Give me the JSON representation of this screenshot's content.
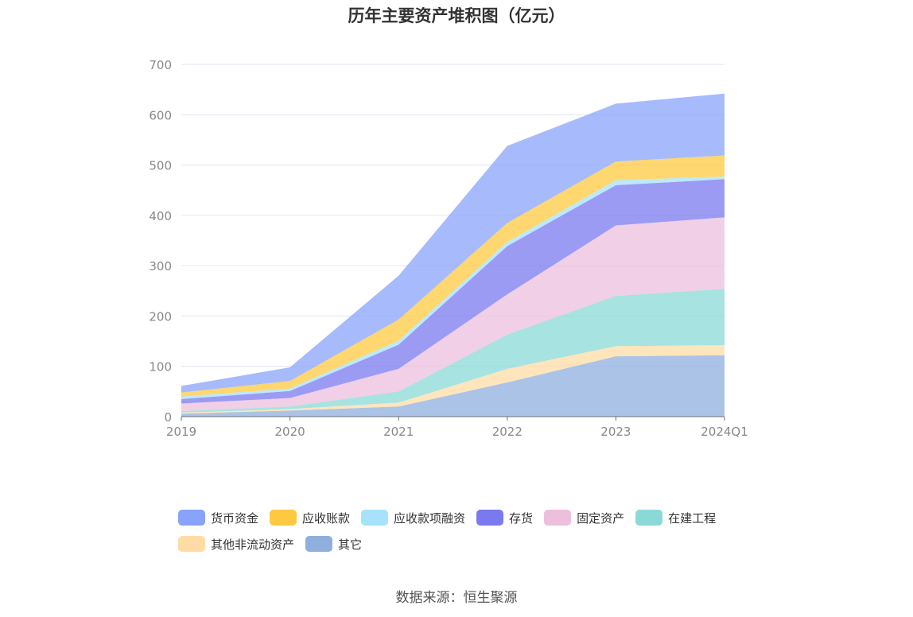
{
  "chart_data": {
    "type": "area",
    "stacked": true,
    "title": "历年主要资产堆积图（亿元）",
    "categories": [
      "2019",
      "2020",
      "2021",
      "2022",
      "2023",
      "2024Q1"
    ],
    "ylim": [
      0,
      700
    ],
    "yticks": [
      0,
      100,
      200,
      300,
      400,
      500,
      600,
      700
    ],
    "grid": true,
    "legend_position": "bottom",
    "series": [
      {
        "name": "其它",
        "color": "#8fafdd",
        "values": [
          6,
          12,
          20,
          68,
          120,
          122
        ]
      },
      {
        "name": "其他非流动资产",
        "color": "#ffdca5",
        "values": [
          2,
          3,
          8,
          27,
          20,
          20
        ]
      },
      {
        "name": "在建工程",
        "color": "#8ad9d6",
        "values": [
          3,
          5,
          22,
          68,
          100,
          112
        ]
      },
      {
        "name": "固定资产",
        "color": "#ecbfdd",
        "values": [
          15,
          17,
          45,
          80,
          140,
          142
        ]
      },
      {
        "name": "存货",
        "color": "#7a79ef",
        "values": [
          9,
          14,
          48,
          96,
          80,
          76
        ]
      },
      {
        "name": "应收款项融资",
        "color": "#a6e2fb",
        "values": [
          5,
          5,
          8,
          8,
          10,
          5
        ]
      },
      {
        "name": "应收账款",
        "color": "#fec940",
        "values": [
          8,
          15,
          42,
          38,
          37,
          42
        ]
      },
      {
        "name": "货币资金",
        "color": "#88a3fb",
        "values": [
          13,
          27,
          87,
          153,
          115,
          123
        ]
      }
    ],
    "legend_order": [
      "货币资金",
      "应收账款",
      "应收款项融资",
      "存货",
      "固定资产",
      "在建工程",
      "其他非流动资产",
      "其它"
    ]
  },
  "source_label": "数据来源：恒生聚源"
}
